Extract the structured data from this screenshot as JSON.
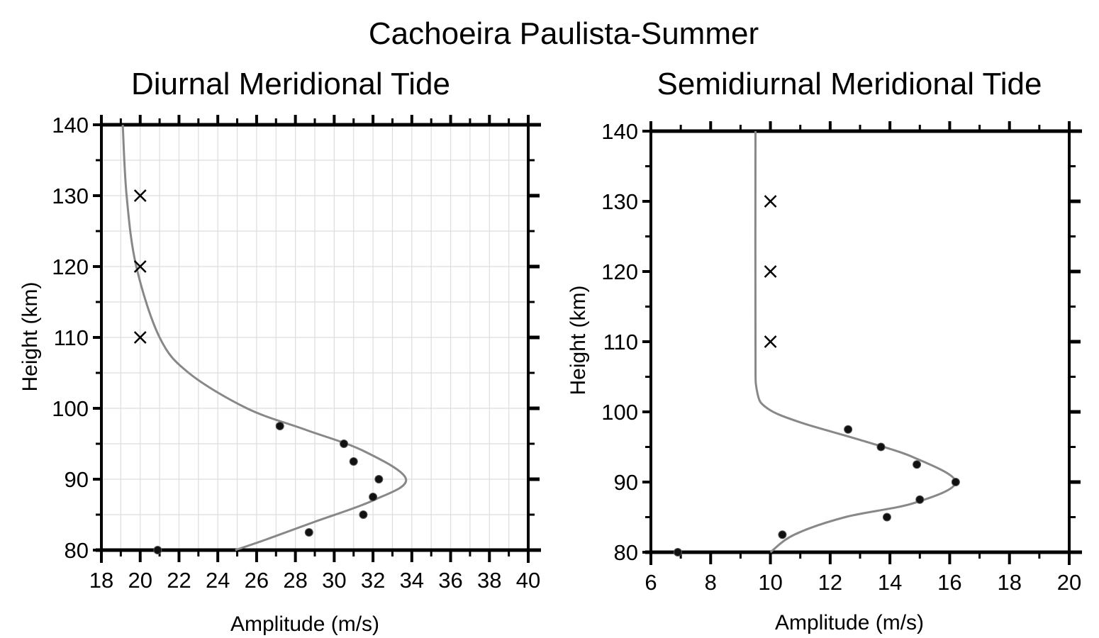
{
  "figure_title": "Cachoeira Paulista-Summer",
  "chart_data": [
    {
      "type": "scatter",
      "title": "Diurnal Meridional Tide",
      "xlabel": "Amplitude (m/s)",
      "ylabel": "Height (km)",
      "xlim": [
        18,
        40
      ],
      "ylim": [
        80,
        140
      ],
      "xticks": [
        18,
        20,
        22,
        24,
        26,
        28,
        30,
        32,
        34,
        36,
        38,
        40
      ],
      "yticks": [
        80,
        90,
        100,
        110,
        120,
        130,
        140
      ],
      "grid": true,
      "series": [
        {
          "marker": "circle",
          "points": [
            {
              "x": 27.2,
              "y": 97.5
            },
            {
              "x": 30.5,
              "y": 95
            },
            {
              "x": 31.0,
              "y": 92.5
            },
            {
              "x": 32.3,
              "y": 90
            },
            {
              "x": 32.0,
              "y": 87.5
            },
            {
              "x": 31.5,
              "y": 85
            },
            {
              "x": 28.7,
              "y": 82.5
            },
            {
              "x": 20.9,
              "y": 80
            }
          ]
        },
        {
          "marker": "x",
          "points": [
            {
              "x": 20.0,
              "y": 130
            },
            {
              "x": 20.0,
              "y": 120
            },
            {
              "x": 20.0,
              "y": 110
            }
          ]
        },
        {
          "marker": "line",
          "color": "#888888",
          "points": [
            {
              "x": 19.1,
              "y": 140
            },
            {
              "x": 19.3,
              "y": 130
            },
            {
              "x": 19.8,
              "y": 120
            },
            {
              "x": 21.0,
              "y": 110
            },
            {
              "x": 22.5,
              "y": 105
            },
            {
              "x": 25.5,
              "y": 100
            },
            {
              "x": 28.5,
              "y": 97
            },
            {
              "x": 31.5,
              "y": 94
            },
            {
              "x": 33.7,
              "y": 90
            },
            {
              "x": 32.0,
              "y": 87
            },
            {
              "x": 29.0,
              "y": 84
            },
            {
              "x": 26.5,
              "y": 81.5
            },
            {
              "x": 24.9,
              "y": 80
            }
          ]
        }
      ]
    },
    {
      "type": "scatter",
      "title": "Semidiurnal Meridional Tide",
      "xlabel": "Amplitude (m/s)",
      "ylabel": "Height (km)",
      "xlim": [
        6,
        20
      ],
      "ylim": [
        80,
        140
      ],
      "xticks": [
        6,
        8,
        10,
        12,
        14,
        16,
        18,
        20
      ],
      "yticks": [
        80,
        90,
        100,
        110,
        120,
        130,
        140
      ],
      "grid": false,
      "series": [
        {
          "marker": "circle",
          "points": [
            {
              "x": 12.6,
              "y": 97.5
            },
            {
              "x": 13.7,
              "y": 95
            },
            {
              "x": 14.9,
              "y": 92.5
            },
            {
              "x": 16.2,
              "y": 90
            },
            {
              "x": 15.0,
              "y": 87.5
            },
            {
              "x": 13.9,
              "y": 85
            },
            {
              "x": 10.4,
              "y": 82.5
            },
            {
              "x": 6.9,
              "y": 80
            }
          ]
        },
        {
          "marker": "x",
          "points": [
            {
              "x": 10.0,
              "y": 130
            },
            {
              "x": 10.0,
              "y": 120
            },
            {
              "x": 10.0,
              "y": 110
            }
          ]
        },
        {
          "marker": "line",
          "color": "#888888",
          "points": [
            {
              "x": 9.5,
              "y": 140
            },
            {
              "x": 9.5,
              "y": 110
            },
            {
              "x": 9.55,
              "y": 103
            },
            {
              "x": 9.9,
              "y": 100.5
            },
            {
              "x": 11.0,
              "y": 98.5
            },
            {
              "x": 13.0,
              "y": 96
            },
            {
              "x": 14.8,
              "y": 93.5
            },
            {
              "x": 16.2,
              "y": 90
            },
            {
              "x": 14.8,
              "y": 87
            },
            {
              "x": 12.5,
              "y": 85
            },
            {
              "x": 10.8,
              "y": 82.5
            },
            {
              "x": 10.0,
              "y": 80
            }
          ]
        }
      ]
    }
  ]
}
